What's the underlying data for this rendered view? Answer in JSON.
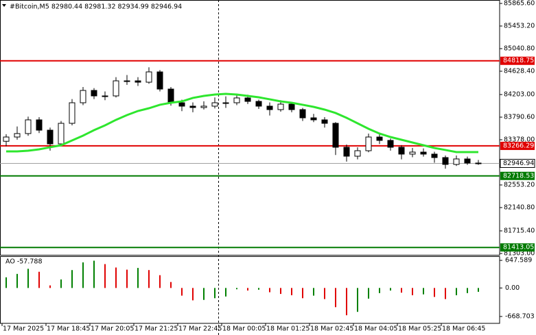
{
  "chart_data": [
    {
      "type": "candlestick",
      "title": "#Bitcoin,M5  82980.44 82981.32 82934.99 82946.94",
      "categories": [
        "17 Mar 2025",
        null,
        null,
        null,
        "17 Mar 18:45",
        null,
        null,
        null,
        "17 Mar 20:05",
        null,
        null,
        null,
        "17 Mar 21:25",
        null,
        null,
        null,
        "17 Mar 22:45",
        null,
        null,
        null,
        "18 Mar 00:05",
        null,
        null,
        null,
        "18 Mar 01:25",
        null,
        null,
        null,
        "18 Mar 02:45",
        null,
        null,
        null,
        "18 Mar 04:05",
        null,
        null,
        null,
        "18 Mar 05:25",
        null,
        null,
        null,
        "18 Mar 06:45",
        null,
        null,
        null
      ],
      "open": [
        83350,
        83428,
        83491,
        83741,
        83553,
        83303,
        83678,
        84053,
        84278,
        84178,
        84178,
        84453,
        84453,
        84428,
        84616,
        84303,
        84053,
        83991,
        83966,
        83991,
        84053,
        84053,
        84141,
        84078,
        83991,
        83928,
        84028,
        83928,
        83778,
        83741,
        83678,
        83241,
        83078,
        83178,
        83428,
        83366,
        83241,
        83116,
        83153,
        83116,
        83053,
        82928,
        83028,
        82953
      ],
      "high": [
        83480,
        83620,
        83800,
        83790,
        83600,
        83720,
        84120,
        84340,
        84320,
        84260,
        84520,
        84560,
        84520,
        84700,
        84650,
        84340,
        84110,
        84060,
        84080,
        84150,
        84170,
        84220,
        84200,
        84110,
        84060,
        84100,
        84070,
        83960,
        83850,
        83790,
        83700,
        83290,
        83240,
        83490,
        83480,
        83400,
        83280,
        83230,
        83220,
        83160,
        83090,
        83090,
        83070,
        83010
      ],
      "low": [
        83260,
        83380,
        83450,
        83500,
        83180,
        83270,
        83640,
        84010,
        84120,
        84100,
        84150,
        84380,
        84360,
        84400,
        84260,
        84000,
        83900,
        83880,
        83930,
        83950,
        83960,
        84010,
        84030,
        83940,
        83820,
        83890,
        83880,
        83720,
        83700,
        83600,
        83100,
        82980,
        83020,
        83150,
        83300,
        83180,
        83020,
        83060,
        83070,
        82960,
        82850,
        82900,
        82920,
        82920
      ],
      "close": [
        83428,
        83491,
        83741,
        83553,
        83303,
        83678,
        84053,
        84278,
        84178,
        84178,
        84453,
        84453,
        84428,
        84616,
        84303,
        84053,
        83991,
        83966,
        83991,
        84053,
        84053,
        84141,
        84078,
        83991,
        83928,
        84028,
        83928,
        83778,
        83741,
        83678,
        83241,
        83078,
        83178,
        83428,
        83366,
        83241,
        83116,
        83153,
        83116,
        83053,
        82928,
        83028,
        82953,
        82946.94
      ],
      "colors": {
        "up": "#ffffff",
        "down": "#000000",
        "outline": "#000000"
      },
      "ma": {
        "color": "#2ee62e",
        "values": [
          83166,
          83166,
          83178,
          83203,
          83241,
          83278,
          83366,
          83453,
          83553,
          83641,
          83741,
          83828,
          83903,
          83953,
          84016,
          84053,
          84078,
          84141,
          84178,
          84203,
          84216,
          84203,
          84178,
          84153,
          84116,
          84078,
          84053,
          84016,
          83978,
          83928,
          83866,
          83778,
          83678,
          83578,
          83491,
          83428,
          83378,
          83328,
          83278,
          83228,
          83191,
          83153,
          83153,
          83153
        ]
      },
      "levels": [
        {
          "value": 84818.75,
          "color": "#e00000"
        },
        {
          "value": 83266.29,
          "color": "#e00000"
        },
        {
          "value": 82718.53,
          "color": "#007a00"
        },
        {
          "value": 81413.05,
          "color": "#007a00"
        }
      ],
      "last_price": {
        "value": 82946.94,
        "color": "#a0a0a0"
      },
      "ylim": [
        81278,
        85928
      ],
      "yticks": [
        {
          "value": 85865.6,
          "label": "85865.60"
        },
        {
          "value": 85453.2,
          "label": "85453.20"
        },
        {
          "value": 85040.8,
          "label": "85040.80"
        },
        {
          "value": 84628.4,
          "label": "84628.40"
        },
        {
          "value": 84203,
          "label": "84203.00"
        },
        {
          "value": 83790.6,
          "label": "83790.60"
        },
        {
          "value": 83378,
          "label": "83378.00"
        },
        {
          "value": 82553.2,
          "label": "82553.20"
        },
        {
          "value": 82140.8,
          "label": "82140.80"
        },
        {
          "value": 81715.4,
          "label": "81715.40"
        },
        {
          "value": 81303,
          "label": "81303.00"
        }
      ]
    },
    {
      "type": "histogram",
      "title": "AO -57.788",
      "values": [
        250,
        330,
        450,
        380,
        60,
        200,
        420,
        600,
        640,
        560,
        480,
        430,
        470,
        420,
        300,
        140,
        -180,
        -290,
        -280,
        -240,
        -200,
        -30,
        -60,
        -40,
        -100,
        -140,
        -170,
        -240,
        -180,
        -260,
        -450,
        -640,
        -560,
        -250,
        -120,
        -60,
        -110,
        -170,
        -150,
        -210,
        -260,
        -170,
        -120,
        -90
      ],
      "colors": {
        "up": "#008000",
        "down": "#e00000"
      },
      "ylim": [
        -830,
        745
      ],
      "yticks": [
        647.589,
        {
          "value": 0,
          "label": "0.00"
        },
        -668.703
      ]
    }
  ]
}
